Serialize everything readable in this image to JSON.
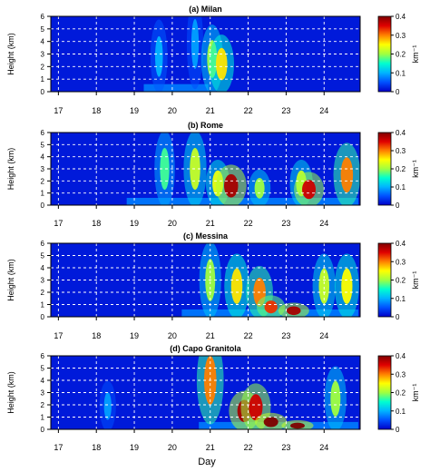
{
  "figure": {
    "xlabel": "Day",
    "colorbar_unit": "km⁻¹"
  },
  "chart_data": [
    {
      "type": "heatmap",
      "title": "(a)  Milan",
      "ylabel": "Height (km)",
      "x_range": [
        16.8,
        24.95
      ],
      "y_range": [
        0,
        6
      ],
      "x_ticks": [
        "17",
        "18",
        "19",
        "20",
        "21",
        "22",
        "23",
        "24"
      ],
      "y_ticks": [
        "0",
        "1",
        "2",
        "3",
        "4",
        "5",
        "6"
      ],
      "color_range": [
        0,
        0.4
      ],
      "colorbar_ticks": [
        "0",
        "0.1",
        "0.2",
        "0.3",
        "0.4"
      ],
      "colormap": [
        "#0000c8",
        "#0050ff",
        "#00b4ff",
        "#00ffd0",
        "#a0ff40",
        "#ffff00",
        "#ff8000",
        "#e00000",
        "#800000"
      ],
      "grid": true,
      "data_days": [
        19.25,
        20.95
      ],
      "features": [
        {
          "day": 20.6,
          "height": 3.8,
          "value": 0.09
        },
        {
          "day": 21.05,
          "height": 2.6,
          "value": 0.2
        },
        {
          "day": 21.3,
          "height": 2.2,
          "value": 0.26
        },
        {
          "day": 19.65,
          "height": 2.8,
          "value": 0.1
        }
      ]
    },
    {
      "type": "heatmap",
      "title": "(b)  Rome",
      "ylabel": "Height (km)",
      "x_range": [
        16.8,
        24.95
      ],
      "y_range": [
        0,
        6
      ],
      "x_ticks": [
        "17",
        "18",
        "19",
        "20",
        "21",
        "22",
        "23",
        "24"
      ],
      "y_ticks": [
        "0",
        "1",
        "2",
        "3",
        "4",
        "5",
        "6"
      ],
      "color_range": [
        0,
        0.4
      ],
      "colorbar_ticks": [
        "0",
        "0.1",
        "0.2",
        "0.3",
        "0.4"
      ],
      "colormap": [
        "#0000c8",
        "#0050ff",
        "#00b4ff",
        "#00ffd0",
        "#a0ff40",
        "#ffff00",
        "#ff8000",
        "#e00000",
        "#800000"
      ],
      "grid": true,
      "data_days": [
        18.8,
        24.9
      ],
      "features": [
        {
          "day": 19.8,
          "height": 3.0,
          "value": 0.17
        },
        {
          "day": 20.6,
          "height": 3.0,
          "value": 0.22
        },
        {
          "day": 21.2,
          "height": 1.8,
          "value": 0.24
        },
        {
          "day": 21.55,
          "height": 1.6,
          "value": 0.38
        },
        {
          "day": 22.3,
          "height": 1.4,
          "value": 0.2
        },
        {
          "day": 23.4,
          "height": 1.8,
          "value": 0.22
        },
        {
          "day": 23.6,
          "height": 1.3,
          "value": 0.36
        },
        {
          "day": 24.6,
          "height": 2.5,
          "value": 0.3
        }
      ]
    },
    {
      "type": "heatmap",
      "title": "(c)  Messina",
      "ylabel": "Height (km)",
      "x_range": [
        16.8,
        24.95
      ],
      "y_range": [
        0,
        6
      ],
      "x_ticks": [
        "17",
        "18",
        "19",
        "20",
        "21",
        "22",
        "23",
        "24"
      ],
      "y_ticks": [
        "0",
        "1",
        "2",
        "3",
        "4",
        "5",
        "6"
      ],
      "color_range": [
        0,
        0.4
      ],
      "colorbar_ticks": [
        "0",
        "0.1",
        "0.2",
        "0.3",
        "0.4"
      ],
      "colormap": [
        "#0000c8",
        "#0050ff",
        "#00b4ff",
        "#00ffd0",
        "#a0ff40",
        "#ffff00",
        "#ff8000",
        "#e00000",
        "#800000"
      ],
      "grid": true,
      "data_days": [
        20.25,
        24.9
      ],
      "features": [
        {
          "day": 21.0,
          "height": 3.0,
          "value": 0.2
        },
        {
          "day": 21.7,
          "height": 2.5,
          "value": 0.26
        },
        {
          "day": 22.3,
          "height": 2.0,
          "value": 0.3
        },
        {
          "day": 22.6,
          "height": 0.8,
          "value": 0.33
        },
        {
          "day": 23.2,
          "height": 0.5,
          "value": 0.38
        },
        {
          "day": 24.0,
          "height": 2.5,
          "value": 0.22
        },
        {
          "day": 24.6,
          "height": 2.5,
          "value": 0.25
        }
      ]
    },
    {
      "type": "heatmap",
      "title": "(d)  Capo Granitola",
      "ylabel": "Height (km)",
      "x_range": [
        16.8,
        24.95
      ],
      "y_range": [
        0,
        6
      ],
      "x_ticks": [
        "17",
        "18",
        "19",
        "20",
        "21",
        "22",
        "23",
        "24"
      ],
      "y_ticks": [
        "0",
        "1",
        "2",
        "3",
        "4",
        "5",
        "6"
      ],
      "color_range": [
        0,
        0.4
      ],
      "colorbar_ticks": [
        "0",
        "0.1",
        "0.2",
        "0.3",
        "0.4"
      ],
      "colormap": [
        "#0000c8",
        "#0050ff",
        "#00b4ff",
        "#00ffd0",
        "#a0ff40",
        "#ffff00",
        "#ff8000",
        "#e00000",
        "#800000"
      ],
      "grid": true,
      "data_days": [
        20.7,
        24.9
      ],
      "features": [
        {
          "day": 18.3,
          "height": 1.9,
          "value": 0.09
        },
        {
          "day": 21.0,
          "height": 4.0,
          "value": 0.3
        },
        {
          "day": 21.9,
          "height": 1.5,
          "value": 0.38
        },
        {
          "day": 22.2,
          "height": 1.8,
          "value": 0.36
        },
        {
          "day": 22.6,
          "height": 0.6,
          "value": 0.4
        },
        {
          "day": 23.3,
          "height": 0.3,
          "value": 0.4
        },
        {
          "day": 24.3,
          "height": 2.5,
          "value": 0.2
        }
      ]
    }
  ]
}
